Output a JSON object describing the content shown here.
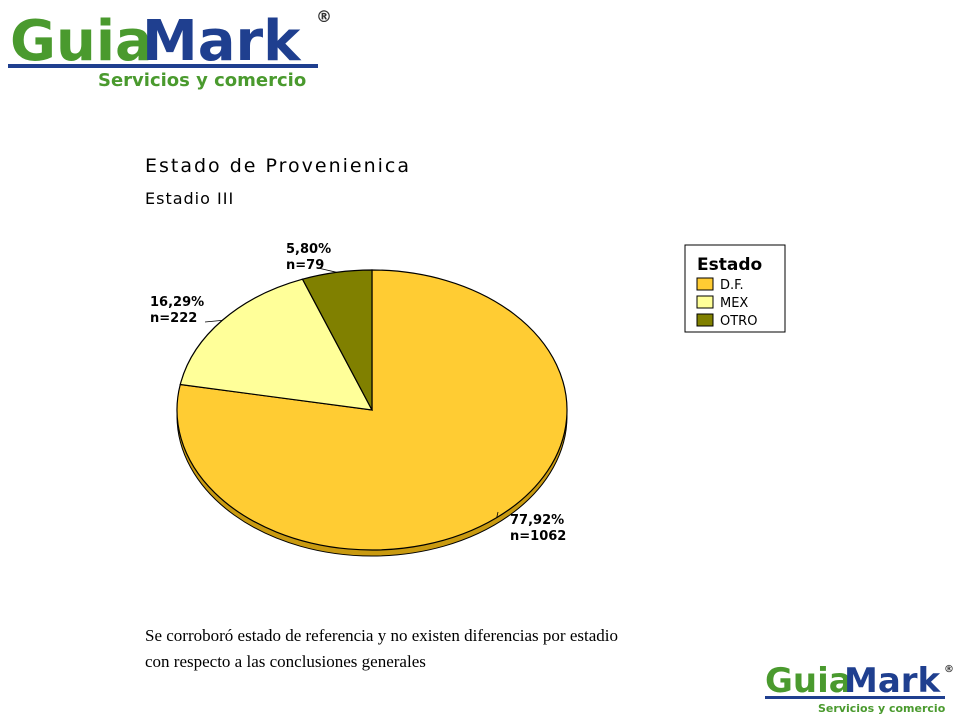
{
  "logo_top": {
    "part1": "Guia",
    "part2": "Mark",
    "mark": "®",
    "tagline": "Servicios y comercio"
  },
  "logo_bottom": {
    "part1": "Guia",
    "part2": "Mark",
    "mark": "®",
    "tagline": "Servicios y comercio"
  },
  "chart_data": {
    "type": "pie",
    "title": "Estado de Provenienica",
    "subtitle": "Estadio III",
    "legend_title": "Estado",
    "legend_position": "right",
    "categories": [
      "D.F.",
      "MEX",
      "OTRO"
    ],
    "values": [
      77.92,
      16.29,
      5.8
    ],
    "value_labels": [
      "77,92%",
      "16,29%",
      "5,80%"
    ],
    "counts": [
      1062,
      222,
      79
    ],
    "count_labels": [
      "n=1062",
      "n=222",
      "n=79"
    ],
    "colors": [
      "#FFCC33",
      "#FFFF99",
      "#808000"
    ]
  },
  "caption": [
    "Se corroboró estado de referencia y no existen diferencias por estadio",
    "con respecto a las conclusiones generales"
  ]
}
